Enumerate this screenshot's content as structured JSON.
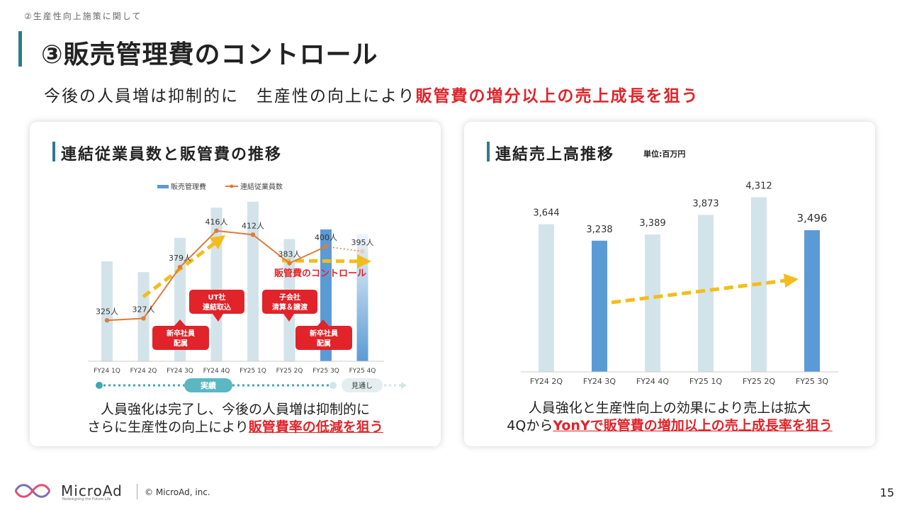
{
  "breadcrumb": "②生産性向上施策に関して",
  "page_title": "③販売管理費のコントロール",
  "lead": {
    "normal": "今後の人員増は抑制的に　生産性の向上により",
    "highlight": "販管費の増分以上の売上成長を狙う"
  },
  "left_card": {
    "title": "連結従業員数と販管費の推移",
    "legend_bar": "販売管理費",
    "legend_line": "連結従業員数",
    "callouts": {
      "ut": [
        "UT社",
        "連結取込"
      ],
      "shinsotsu1": [
        "新卒社員",
        "配属"
      ],
      "kogaisha": [
        "子会社",
        "清算＆譲渡"
      ],
      "shinsotsu2": [
        "新卒社員",
        "配属"
      ]
    },
    "control_label": "販管費のコントロール",
    "timeline_actual": "実績",
    "timeline_forecast": "見通し",
    "caption_line1": "人員強化は完了し、今後の人員増は抑制的に",
    "caption_line2_normal": "さらに生産性の向上により",
    "caption_line2_highlight": "販管費率の低減を狙う"
  },
  "right_card": {
    "title": "連結売上高推移",
    "unit": "単位:百万円",
    "caption_line1": "人員強化と生産性向上の効果により売上は拡大",
    "caption_line2_normal": "4Qから",
    "caption_line2_highlight": "YonYで販管費の増加以上の売上成長率を狙う"
  },
  "chart_data": [
    {
      "type": "bar",
      "title": "連結従業員数と販管費の推移",
      "categories": [
        "FY24 1Q",
        "FY24 2Q",
        "FY24 3Q",
        "FY24 4Q",
        "FY25 1Q",
        "FY25 2Q",
        "FY25 3Q",
        "FY25 4Q"
      ],
      "series": [
        {
          "name": "販売管理費",
          "kind": "bar",
          "values": [
            1660,
            1480,
            2050,
            2550,
            2650,
            2030,
            2190,
            2110
          ],
          "colors": [
            "#d3e3ea",
            "#d3e3ea",
            "#d3e3ea",
            "#d3e3ea",
            "#d3e3ea",
            "#d3e3ea",
            "#5b9bd5",
            "gradient"
          ]
        },
        {
          "name": "連結従業員数",
          "kind": "line",
          "values": [
            325,
            327,
            379,
            416,
            412,
            383,
            400,
            395
          ],
          "labels": [
            "325人",
            "327人",
            "379人",
            "416人",
            "412人",
            "383人",
            "400人",
            "395人"
          ],
          "color": "#e07b39"
        }
      ]
    },
    {
      "type": "bar",
      "title": "連結売上高推移",
      "categories": [
        "FY24 2Q",
        "FY24 3Q",
        "FY24 4Q",
        "FY25 1Q",
        "FY25 2Q",
        "FY25 3Q"
      ],
      "values": [
        3644,
        3238,
        3389,
        3873,
        4312,
        3496
      ],
      "labels": [
        "3,644",
        "3,238",
        "3,389",
        "3,873",
        "4,312",
        "3,496"
      ],
      "unit": "単位:百万円",
      "highlight_color": "#5b9bd5",
      "base_color": "#d3e3ea",
      "highlighted": [
        1,
        5
      ]
    }
  ],
  "footer": {
    "brand": "MicroAd",
    "tagline": "Redesigning the Future Life",
    "copyright": "© MicroAd, inc.",
    "page_number": "15"
  }
}
